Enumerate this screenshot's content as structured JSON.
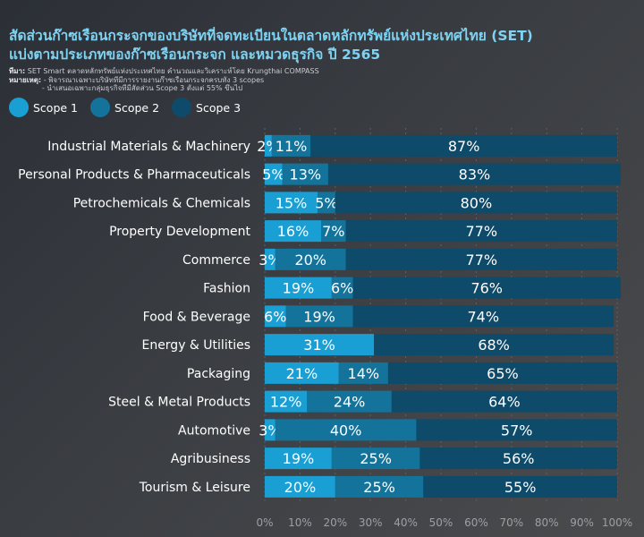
{
  "title_lines": [
    "สัดส่วนก๊าซเรือนกระจกของบริษัทที่จดทะเบียนในตลาดหลักทรัพย์แห่งประเทศไทย (SET)",
    "แบ่งตามประเภทของก๊าซเรือนกระจก และหมวดธุรกิจ ปี 2565"
  ],
  "notes": {
    "source_label": "ที่มา:",
    "source_text": "SET Smart ตลาดหลักทรัพย์แห่งประเทศไทย คำนวณและวิเคราะห์โดย Krungthai COMPASS",
    "remark_label": "หมายเหตุ:",
    "remark_line1": "- พิจารณาเฉพาะบริษัทที่มีการรายงานก๊าซเรือนกระจกครบทั้ง 3 scopes",
    "remark_line2": "- นำเสนอเฉพาะกลุ่มธุรกิจที่มีสัดส่วน Scope 3 ตั้งแต่ 55% ขึ้นไป"
  },
  "colors": {
    "scope1": "#1a9fd4",
    "scope2": "#13739b",
    "scope3": "#0e4a69"
  },
  "chart_data": {
    "type": "bar",
    "orientation": "horizontal",
    "stacked": true,
    "categories": [
      "Industrial Materials & Machinery",
      "Personal Products & Pharmaceuticals",
      "Petrochemicals & Chemicals",
      "Property Development",
      "Commerce",
      "Fashion",
      "Food & Beverage",
      "Energy & Utilities",
      "Packaging",
      "Steel & Metal Products",
      "Automotive",
      "Agribusiness",
      "Tourism & Leisure"
    ],
    "series": [
      {
        "name": "Scope 1",
        "values": [
          2,
          5,
          15,
          16,
          3,
          19,
          6,
          31,
          21,
          12,
          3,
          19,
          20
        ]
      },
      {
        "name": "Scope 2",
        "values": [
          11,
          13,
          5,
          7,
          20,
          6,
          19,
          0,
          14,
          24,
          40,
          25,
          25
        ]
      },
      {
        "name": "Scope 3",
        "values": [
          87,
          83,
          80,
          77,
          77,
          76,
          74,
          68,
          65,
          64,
          57,
          56,
          55
        ]
      }
    ],
    "xlim": [
      0,
      100
    ],
    "xticks": [
      "0%",
      "10%",
      "20%",
      "30%",
      "40%",
      "50%",
      "60%",
      "70%",
      "80%",
      "90%",
      "100%"
    ],
    "grid": true,
    "legend": "top-left"
  }
}
